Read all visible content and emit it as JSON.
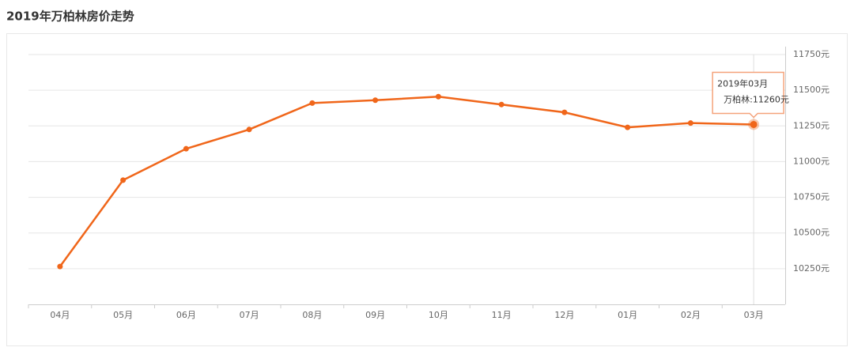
{
  "chart_data": {
    "type": "line",
    "title": "2019年万柏林房价走势",
    "categories": [
      "04月",
      "05月",
      "06月",
      "07月",
      "08月",
      "09月",
      "10月",
      "11月",
      "12月",
      "01月",
      "02月",
      "03月"
    ],
    "values": [
      10265,
      10870,
      11090,
      11225,
      11410,
      11430,
      11455,
      11400,
      11345,
      11240,
      11270,
      11260
    ],
    "color": "#f0661a",
    "ylim": [
      10000,
      11750
    ],
    "yticks": [
      {
        "value": 10250,
        "label": "10250元"
      },
      {
        "value": 10500,
        "label": "10500元"
      },
      {
        "value": 10750,
        "label": "10750元"
      },
      {
        "value": 11000,
        "label": "11000元"
      },
      {
        "value": 11250,
        "label": "11250元"
      },
      {
        "value": 11500,
        "label": "11500元"
      },
      {
        "value": 11750,
        "label": "11750元"
      }
    ],
    "grid": true,
    "tooltip": {
      "title": "2019年03月",
      "text": "万柏林:11260元"
    }
  }
}
